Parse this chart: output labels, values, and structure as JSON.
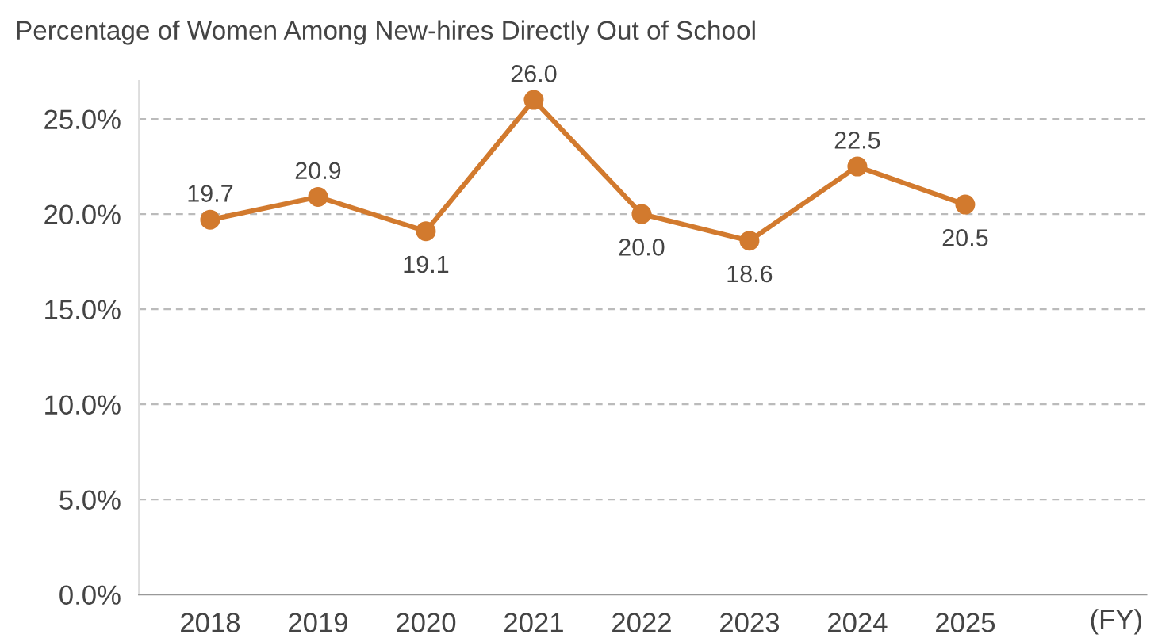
{
  "chart_data": {
    "type": "line",
    "title": "Percentage of Women Among New-hires Directly Out of School",
    "xlabel": "(FY)",
    "categories": [
      "2018",
      "2019",
      "2020",
      "2021",
      "2022",
      "2023",
      "2024",
      "2025"
    ],
    "series": [
      {
        "color": "#d27a2e",
        "values": [
          19.7,
          20.9,
          19.1,
          26.0,
          20.0,
          18.6,
          22.5,
          20.5
        ],
        "value_labels": [
          "19.7",
          "20.9",
          "19.1",
          "26.0",
          "20.0",
          "18.6",
          "22.5",
          "20.5"
        ]
      }
    ],
    "ylim": [
      0,
      27
    ],
    "yticks": [
      {
        "value": 0,
        "label": "0.0%"
      },
      {
        "value": 5,
        "label": "5.0%"
      },
      {
        "value": 10,
        "label": "10.0%"
      },
      {
        "value": 15,
        "label": "15.0%"
      },
      {
        "value": 20,
        "label": "20.0%"
      },
      {
        "value": 25,
        "label": "25.0%"
      }
    ],
    "grid": "y",
    "marker": "circle",
    "line_style": "solid",
    "legend": false
  }
}
